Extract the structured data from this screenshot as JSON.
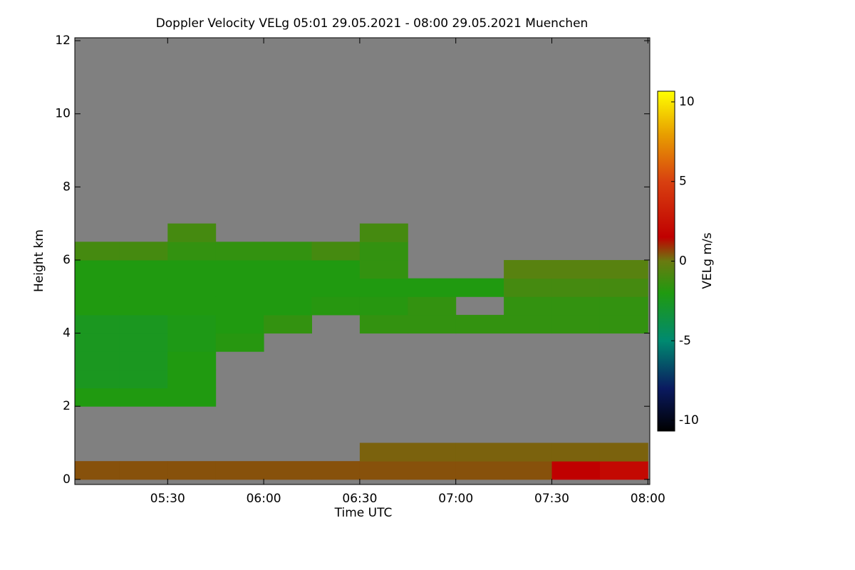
{
  "chart_data": {
    "type": "heatmap",
    "title": "Doppler Velocity VELg   05:01 29.05.2021 - 08:00 29.05.2021 Muenchen",
    "x_label": "Time UTC",
    "y_label": "Height km",
    "colorbar_label": "VELg m/s",
    "background": "#808080",
    "xlim": [
      5.0167,
      8.01
    ],
    "xticks": [
      {
        "value": 5.5,
        "label": "05:30"
      },
      {
        "value": 6.0,
        "label": "06:00"
      },
      {
        "value": 6.5,
        "label": "06:30"
      },
      {
        "value": 7.0,
        "label": "07:00"
      },
      {
        "value": 7.5,
        "label": "07:30"
      },
      {
        "value": 8.0,
        "label": "08:00"
      }
    ],
    "ylim": [
      -0.14,
      12.08
    ],
    "yticks": [
      0,
      2,
      4,
      6,
      8,
      10,
      12
    ],
    "zlim": [
      -10.67,
      10.67
    ],
    "zticks": [
      -10,
      -5,
      0,
      5,
      10
    ],
    "colorscale": [
      [
        -10.67,
        "#000000"
      ],
      [
        -8,
        "#0a1a60"
      ],
      [
        -5,
        "#008a70"
      ],
      [
        -2,
        "#209a10"
      ],
      [
        0,
        "#6a7a10"
      ],
      [
        1.5,
        "#c00000"
      ],
      [
        5,
        "#d84010"
      ],
      [
        8,
        "#e8a000"
      ],
      [
        10.67,
        "#ffff00"
      ]
    ],
    "x_edges": [
      5.0,
      5.25,
      5.5,
      5.75,
      6.0,
      6.25,
      6.5,
      6.75,
      7.0,
      7.25,
      7.5,
      7.75,
      8.0
    ],
    "y_edges": [
      0,
      0.5,
      1,
      1.5,
      2,
      2.5,
      3,
      3.5,
      4,
      4.5,
      5,
      5.5,
      6,
      6.5,
      7
    ],
    "z": [
      [
        0.5,
        0.5,
        0.5,
        0.5,
        0.5,
        0.5,
        0.5,
        0.5,
        0.5,
        0.5,
        1.5,
        2
      ],
      [
        null,
        null,
        null,
        null,
        null,
        null,
        0.3,
        0.3,
        0.3,
        0.3,
        0.3,
        0.3
      ],
      [
        null,
        null,
        null,
        null,
        null,
        null,
        null,
        null,
        null,
        null,
        null,
        null
      ],
      [
        null,
        null,
        null,
        null,
        null,
        null,
        null,
        null,
        null,
        null,
        null,
        null
      ],
      [
        -2,
        -2,
        -2,
        null,
        null,
        null,
        null,
        null,
        null,
        null,
        null,
        null
      ],
      [
        -2.5,
        -2.5,
        -2,
        null,
        null,
        null,
        null,
        null,
        null,
        null,
        null,
        null
      ],
      [
        -2.5,
        -2.5,
        -2,
        null,
        null,
        null,
        null,
        null,
        null,
        null,
        null,
        null
      ],
      [
        -2.5,
        -2.5,
        -2.2,
        -1.8,
        null,
        null,
        null,
        null,
        null,
        null,
        null,
        null
      ],
      [
        -2.5,
        -2.5,
        -2.2,
        -2,
        -1.5,
        null,
        -1.5,
        -1.5,
        -1.5,
        -1.5,
        -1.5,
        -1.5
      ],
      [
        -2,
        -2,
        -2,
        -2,
        -2,
        -1.8,
        -1.8,
        -1.5,
        null,
        -1.5,
        -1.5,
        -1.5
      ],
      [
        -2,
        -2,
        -2,
        -2,
        -2,
        -2,
        -2,
        -2,
        -2,
        -1,
        -1,
        -1
      ],
      [
        -2,
        -2,
        -2,
        -2,
        -2,
        -2,
        -1.5,
        null,
        null,
        -0.5,
        -0.5,
        -0.5
      ],
      [
        -1,
        -1,
        -1.5,
        -1.5,
        -1.5,
        -1,
        -1.5,
        null,
        null,
        null,
        null,
        null
      ],
      [
        null,
        null,
        -1,
        null,
        null,
        null,
        -1,
        null,
        null,
        null,
        null,
        null
      ]
    ]
  }
}
